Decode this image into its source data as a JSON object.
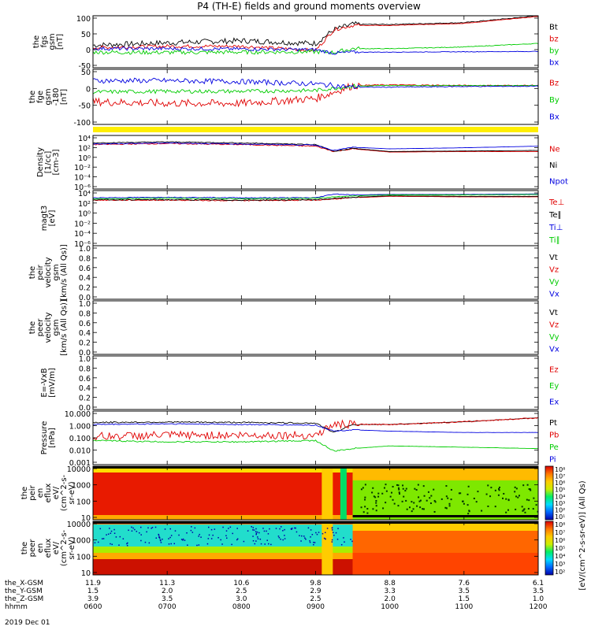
{
  "title": "P4 (TH-E) fields and ground moments overview",
  "date": "2019 Dec 01",
  "colors": {
    "black": "#000000",
    "red": "#e00000",
    "green": "#00cc00",
    "blue": "#0000e0",
    "yellow": "#ffee00"
  },
  "chart_data": [
    {
      "id": "fgs",
      "type": "line",
      "ylabel": [
        "the",
        "fgs",
        "gsm",
        "[nT]"
      ],
      "yticks": [
        "100",
        "50",
        "0",
        "-50"
      ],
      "ylim": [
        -50,
        100
      ],
      "series": [
        {
          "name": "Bt",
          "color": "#000000",
          "x": [
            600,
            700,
            800,
            900,
            915,
            930,
            1000,
            1100,
            1200
          ],
          "values": [
            15,
            22,
            28,
            20,
            60,
            75,
            75,
            80,
            100
          ],
          "noise": 8
        },
        {
          "name": "bz",
          "color": "#e00000",
          "x": [
            600,
            700,
            800,
            900,
            915,
            930,
            1000,
            1100,
            1200
          ],
          "values": [
            8,
            12,
            12,
            0,
            60,
            72,
            72,
            78,
            98
          ],
          "noise": 5
        },
        {
          "name": "by",
          "color": "#00cc00",
          "x": [
            600,
            700,
            800,
            900,
            915,
            930,
            1000,
            1100,
            1200
          ],
          "values": [
            -5,
            -6,
            -5,
            -4,
            -6,
            5,
            5,
            10,
            20
          ],
          "noise": 6
        },
        {
          "name": "bx",
          "color": "#0000e0",
          "x": [
            600,
            700,
            800,
            900,
            915,
            930,
            1000,
            1100,
            1200
          ],
          "values": [
            5,
            5,
            4,
            2,
            -8,
            -5,
            -5,
            -4,
            -3
          ],
          "noise": 5
        }
      ]
    },
    {
      "id": "fge",
      "type": "line",
      "ylabel": [
        "the",
        "fge",
        "gsm",
        "-180",
        "[nT]"
      ],
      "yticks": [
        "50",
        "0",
        "-50",
        "-100"
      ],
      "ylim": [
        -120,
        50
      ],
      "series": [
        {
          "name": "Bz",
          "color": "#e00000",
          "x": [
            600,
            700,
            800,
            900,
            930,
            1000,
            1100,
            1200
          ],
          "values": [
            -50,
            -55,
            -55,
            -40,
            0,
            2,
            0,
            0
          ],
          "noise": 12
        },
        {
          "name": "By",
          "color": "#00cc00",
          "x": [
            600,
            700,
            800,
            900,
            930,
            1000,
            1100,
            1200
          ],
          "values": [
            -20,
            -18,
            -18,
            -15,
            -2,
            0,
            0,
            0
          ],
          "noise": 6
        },
        {
          "name": "Bx",
          "color": "#0000e0",
          "x": [
            600,
            700,
            800,
            900,
            930,
            1000,
            1100,
            1200
          ],
          "values": [
            15,
            15,
            12,
            5,
            -5,
            -5,
            -3,
            -2
          ],
          "noise": 8
        }
      ]
    },
    {
      "id": "density",
      "type": "line",
      "log": true,
      "ylabel": [
        "Density",
        "[1/cc]",
        "[cm-3]"
      ],
      "yticks": [
        "10⁴",
        "10²",
        "10⁰",
        "10⁻²",
        "10⁻⁴",
        "10⁻⁶"
      ],
      "ylim": [
        -6,
        4
      ],
      "series": [
        {
          "name": "Ne",
          "color": "#e00000",
          "x": [
            600,
            700,
            800,
            900,
            915,
            930,
            1000,
            1100,
            1200
          ],
          "values": [
            2.3,
            2.5,
            2.3,
            2.0,
            1.0,
            1.5,
            0.9,
            1.0,
            1.0
          ],
          "noise": 0.1
        },
        {
          "name": "Ni",
          "color": "#000000",
          "x": [
            600,
            700,
            800,
            900,
            915,
            930,
            1000,
            1100,
            1200
          ],
          "values": [
            2.6,
            2.8,
            2.6,
            2.3,
            1.0,
            1.6,
            1.0,
            1.1,
            1.2
          ],
          "noise": 0.08
        },
        {
          "name": "Npot",
          "color": "#0000e0",
          "x": [
            600,
            700,
            800,
            900,
            915,
            930,
            1000,
            1100,
            1200
          ],
          "values": [
            2.4,
            2.6,
            2.4,
            2.2,
            1.2,
            1.8,
            1.5,
            1.7,
            2.0
          ],
          "noise": 0.08
        }
      ]
    },
    {
      "id": "temp",
      "type": "line",
      "log": true,
      "ylabel": [
        "magt3",
        "[eV]"
      ],
      "yticks": [
        "10⁴",
        "10²",
        "10⁰",
        "10⁻²",
        "10⁻⁴",
        "10⁻⁶"
      ],
      "ylim": [
        -7,
        4.5
      ],
      "series": [
        {
          "name": "Te⊥",
          "color": "#e00000",
          "x": [
            600,
            700,
            800,
            900,
            930,
            1000,
            1100,
            1200
          ],
          "values": [
            2.5,
            2.5,
            2.4,
            2.5,
            3.0,
            3.3,
            3.2,
            3.2
          ],
          "noise": 0.1
        },
        {
          "name": "Te∥",
          "color": "#000000",
          "x": [
            600,
            700,
            800,
            900,
            930,
            1000,
            1100,
            1200
          ],
          "values": [
            2.6,
            2.6,
            2.5,
            2.6,
            3.1,
            3.4,
            3.3,
            3.3
          ],
          "noise": 0.1
        },
        {
          "name": "Ti⊥",
          "color": "#0000e0",
          "x": [
            600,
            700,
            800,
            900,
            915,
            930,
            1000,
            1100,
            1200
          ],
          "values": [
            3.0,
            3.1,
            3.0,
            3.0,
            3.8,
            3.6,
            3.7,
            3.7,
            3.8
          ],
          "noise": 0.08
        },
        {
          "name": "Ti∥",
          "color": "#00cc00",
          "x": [
            600,
            700,
            800,
            900,
            930,
            1000,
            1100,
            1200
          ],
          "values": [
            2.8,
            2.9,
            2.8,
            2.9,
            3.4,
            3.6,
            3.6,
            3.7
          ],
          "noise": 0.08
        }
      ]
    },
    {
      "id": "peir",
      "type": "line",
      "empty": true,
      "ylabel": [
        "the",
        "peir",
        "velocity",
        "gsm",
        "[km/s (All Qs)]"
      ],
      "yticks": [
        "1.0",
        "0.8",
        "0.6",
        "0.4",
        "0.2",
        "0.0"
      ],
      "ylim": [
        0,
        1
      ],
      "legend": [
        {
          "name": "Vt",
          "color": "#000000"
        },
        {
          "name": "Vz",
          "color": "#e00000"
        },
        {
          "name": "Vy",
          "color": "#00cc00"
        },
        {
          "name": "Vx",
          "color": "#0000e0"
        }
      ]
    },
    {
      "id": "peer",
      "type": "line",
      "empty": true,
      "ylabel": [
        "the",
        "peer",
        "velocity",
        "gsm",
        "[km/s (All Qs)]"
      ],
      "yticks": [
        "1.0",
        "0.8",
        "0.6",
        "0.4",
        "0.2",
        "0.0"
      ],
      "ylim": [
        0,
        1
      ],
      "legend": [
        {
          "name": "Vt",
          "color": "#000000"
        },
        {
          "name": "Vz",
          "color": "#e00000"
        },
        {
          "name": "Vy",
          "color": "#00cc00"
        },
        {
          "name": "Vx",
          "color": "#0000e0"
        }
      ]
    },
    {
      "id": "efield",
      "type": "line",
      "empty": true,
      "ylabel": [
        "E=-VxB",
        "[mV/m]"
      ],
      "yticks": [
        "1.0",
        "0.8",
        "0.6",
        "0.4",
        "0.2",
        "0.0"
      ],
      "ylim": [
        0,
        1
      ],
      "legend": [
        {
          "name": "Ez",
          "color": "#e00000"
        },
        {
          "name": "Ey",
          "color": "#00cc00"
        },
        {
          "name": "Ex",
          "color": "#0000e0"
        }
      ]
    },
    {
      "id": "pressure",
      "type": "line",
      "log": true,
      "ylabel": [
        "Pressure",
        "[nPa]"
      ],
      "yticks": [
        "10.000",
        "1.000",
        "0.100",
        "0.010",
        "0.001"
      ],
      "ylim": [
        -3,
        1
      ],
      "series": [
        {
          "name": "Pt",
          "color": "#000000",
          "x": [
            600,
            700,
            800,
            900,
            915,
            930,
            1000,
            1100,
            1200
          ],
          "values": [
            0.15,
            0.18,
            0.15,
            0.1,
            -0.6,
            0.0,
            0.0,
            0.2,
            0.5
          ],
          "noise": 0.05
        },
        {
          "name": "Pb",
          "color": "#e00000",
          "x": [
            600,
            700,
            800,
            900,
            915,
            930,
            1000,
            1100,
            1200
          ],
          "values": [
            -0.9,
            -0.8,
            -0.8,
            -0.8,
            0.0,
            0.0,
            0.0,
            0.2,
            0.5
          ],
          "noise": 0.3
        },
        {
          "name": "Pe",
          "color": "#00cc00",
          "x": [
            600,
            700,
            800,
            900,
            915,
            930,
            1000,
            1100,
            1200
          ],
          "values": [
            -1.2,
            -1.3,
            -1.3,
            -1.2,
            -2.0,
            -1.8,
            -1.6,
            -1.7,
            -1.8
          ],
          "noise": 0.05
        },
        {
          "name": "Pi",
          "color": "#0000e0",
          "x": [
            600,
            700,
            800,
            900,
            915,
            930,
            1000,
            1100,
            1200
          ],
          "values": [
            0.0,
            0.05,
            0.0,
            -0.05,
            -0.5,
            -0.4,
            -0.5,
            -0.6,
            -0.6
          ],
          "noise": 0.04
        }
      ]
    },
    {
      "id": "peir-eflux",
      "type": "heatmap",
      "ylabel": [
        "the",
        "peir",
        "en",
        "eflux",
        "eV/",
        "(cm^2-s-",
        "sr-eV)"
      ],
      "yticks": [
        "10000",
        "1000",
        "100",
        "10"
      ],
      "colorbar": {
        "ticks": [
          "10⁸",
          "10⁷",
          "10⁶",
          "10⁵",
          "10⁴",
          "10³",
          "10²",
          "10¹"
        ],
        "label": "[eV/(cm^2-s-sr-eV)] (All Qs)"
      }
    },
    {
      "id": "peer-eflux",
      "type": "heatmap",
      "ylabel": [
        "the",
        "peer",
        "en",
        "eflux",
        "eV/",
        "(cm^2-s-",
        "sr-eV)"
      ],
      "yticks": [
        "10000",
        "1000",
        "100",
        "10"
      ],
      "colorbar": {
        "ticks": [
          "10⁸",
          "10⁷",
          "10⁶",
          "10⁵",
          "10⁴",
          "10³",
          "10²"
        ],
        "label": "[eV/(cm^2-s-sr-eV)] (All Qs)"
      }
    }
  ],
  "footer": {
    "rows": [
      {
        "label": "the_X-GSM",
        "values": [
          "11.9",
          "11.3",
          "10.6",
          "9.8",
          "8.8",
          "7.6",
          "6.1"
        ]
      },
      {
        "label": "the_Y-GSM",
        "values": [
          "1.5",
          "2.0",
          "2.5",
          "2.9",
          "3.3",
          "3.5",
          "3.5"
        ]
      },
      {
        "label": "the_Z-GSM",
        "values": [
          "3.9",
          "3.5",
          "3.0",
          "2.5",
          "2.0",
          "1.5",
          "1.0"
        ]
      },
      {
        "label": "hhmm",
        "values": [
          "0600",
          "0700",
          "0800",
          "0900",
          "1000",
          "1100",
          "1200"
        ]
      }
    ]
  },
  "colorbar_label": "[eV/(cm^2-s-sr-eV)] (All Qs)"
}
